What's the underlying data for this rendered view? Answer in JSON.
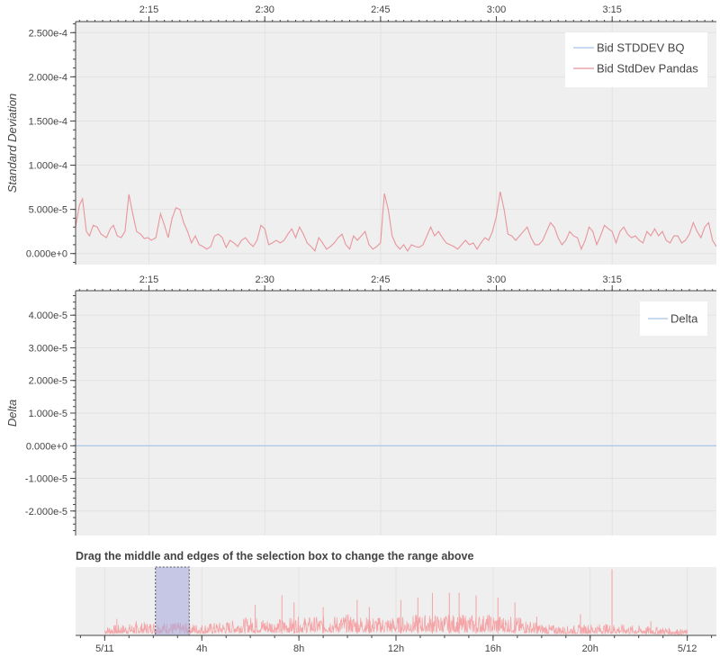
{
  "chart_data": [
    {
      "type": "line",
      "x_axis": {
        "position": "top",
        "ticks": [
          "2:15",
          "2:30",
          "2:45",
          "3:00",
          "3:15"
        ],
        "tick_minutes": [
          135,
          150,
          165,
          180,
          195
        ],
        "range_minutes": [
          125.5,
          208.5
        ]
      },
      "ylabel": "Standard Deviation",
      "yticks": [
        "0.000e+0",
        "5.000e-5",
        "1.000e-4",
        "1.500e-4",
        "2.000e-4",
        "2.500e-4"
      ],
      "ytick_values": [
        0,
        5e-05,
        0.0001,
        0.00015,
        0.0002,
        0.00025
      ],
      "ylim": [
        -1.25e-05,
        0.0002625
      ],
      "grid": true,
      "legend_position": "top-right",
      "series": [
        {
          "name": "Bid STDDEV BQ",
          "color": "#a6c4e6",
          "x": [],
          "y": []
        },
        {
          "name": "Bid StdDev Pandas",
          "color": "#e8959c",
          "x": [
            125.5,
            126.0,
            126.4,
            126.9,
            127.3,
            127.8,
            128.3,
            128.8,
            129.5,
            130.0,
            130.4,
            130.9,
            131.4,
            131.9,
            132.4,
            132.9,
            133.4,
            133.9,
            134.4,
            134.9,
            135.3,
            135.9,
            136.5,
            137.0,
            137.5,
            138.0,
            138.5,
            139.0,
            139.5,
            140.0,
            140.5,
            141.0,
            141.5,
            142.0,
            142.5,
            143.0,
            143.5,
            144.0,
            144.5,
            145.0,
            145.5,
            146.0,
            146.5,
            147.0,
            147.5,
            148.0,
            148.5,
            149.0,
            149.5,
            150.0,
            150.5,
            151.0,
            151.5,
            152.0,
            152.5,
            153.0,
            153.5,
            154.0,
            154.5,
            155.0,
            155.5,
            156.0,
            156.5,
            157.0,
            157.5,
            158.0,
            158.5,
            159.0,
            159.5,
            160.0,
            160.5,
            161.0,
            161.5,
            162.0,
            162.5,
            163.0,
            163.5,
            164.0,
            164.5,
            165.0,
            165.5,
            166.0,
            166.5,
            167.0,
            167.5,
            168.0,
            168.5,
            169.0,
            169.5,
            170.0,
            170.5,
            171.0,
            171.5,
            172.0,
            172.5,
            173.0,
            173.5,
            174.0,
            174.5,
            175.0,
            175.5,
            176.0,
            176.5,
            177.0,
            177.5,
            178.0,
            178.5,
            179.0,
            179.5,
            180.0,
            180.5,
            181.0,
            181.5,
            182.0,
            182.5,
            183.0,
            183.5,
            184.0,
            184.5,
            185.0,
            185.5,
            186.0,
            186.5,
            187.0,
            187.5,
            188.0,
            188.5,
            189.0,
            189.5,
            190.0,
            190.5,
            191.0,
            191.5,
            192.0,
            192.5,
            193.0,
            193.5,
            194.0,
            194.5,
            195.0,
            195.5,
            196.0,
            196.5,
            197.0,
            197.5,
            198.0,
            198.5,
            199.0,
            199.5,
            200.0,
            200.5,
            201.0,
            201.5,
            202.0,
            202.5,
            203.0,
            203.5,
            204.0,
            204.5,
            205.0,
            205.5,
            206.0,
            206.5,
            207.0,
            207.5,
            208.0,
            208.5
          ],
          "y": [
            3e-05,
            5.5e-05,
            6.2e-05,
            2.5e-05,
            2e-05,
            3.2e-05,
            3e-05,
            2.2e-05,
            1.8e-05,
            2.8e-05,
            3.2e-05,
            2e-05,
            1.8e-05,
            2.5e-05,
            6.7e-05,
            4.5e-05,
            2.5e-05,
            2.2e-05,
            1.7e-05,
            1.8e-05,
            1.5e-05,
            1.8e-05,
            4.5e-05,
            3.2e-05,
            1.8e-05,
            4e-05,
            5.2e-05,
            5e-05,
            3.5e-05,
            2.5e-05,
            1.2e-05,
            2e-05,
            1e-05,
            8e-06,
            5e-06,
            8e-06,
            2e-05,
            2.2e-05,
            1.8e-05,
            7e-06,
            1.5e-05,
            1.2e-05,
            8e-06,
            1.5e-05,
            1.8e-05,
            1.2e-05,
            8e-06,
            1.5e-05,
            3.2e-05,
            2.8e-05,
            1e-05,
            1.2e-05,
            1.5e-05,
            1.2e-05,
            1.5e-05,
            2.2e-05,
            2.8e-05,
            1.8e-05,
            3e-05,
            2.2e-05,
            1.2e-05,
            8e-06,
            3e-06,
            1.8e-05,
            1.2e-05,
            5e-06,
            8e-06,
            1.2e-05,
            1.8e-05,
            2.2e-05,
            1e-05,
            5e-06,
            2e-05,
            1.5e-05,
            2e-05,
            2.5e-05,
            1e-05,
            5e-06,
            8e-06,
            1.2e-05,
            6.8e-05,
            5e-05,
            2e-05,
            1e-05,
            5e-06,
            1e-05,
            3e-06,
            1e-05,
            8e-06,
            7e-06,
            1e-05,
            2e-05,
            3e-05,
            2e-05,
            2.5e-05,
            1.8e-05,
            1.2e-05,
            1e-05,
            8e-06,
            5e-06,
            1e-05,
            1.5e-05,
            1e-05,
            1.2e-05,
            5e-06,
            1.2e-05,
            1.8e-05,
            1.5e-05,
            2.5e-05,
            4.2e-05,
            7e-05,
            5e-05,
            2.2e-05,
            2e-05,
            1.5e-05,
            2e-05,
            2.5e-05,
            3e-05,
            1.8e-05,
            1e-05,
            1e-05,
            1.5e-05,
            2.5e-05,
            3.5e-05,
            3e-05,
            1.8e-05,
            1e-05,
            1.5e-05,
            2.5e-05,
            2e-05,
            1.8e-05,
            5e-06,
            1.5e-05,
            3e-05,
            2.5e-05,
            1e-05,
            2e-05,
            3.2e-05,
            2.8e-05,
            2.5e-05,
            1.2e-05,
            2.5e-05,
            3e-05,
            2.2e-05,
            1.8e-05,
            2e-05,
            1.5e-05,
            1.2e-05,
            2.5e-05,
            2e-05,
            2.8e-05,
            2e-05,
            2.5e-05,
            1.5e-05,
            1.2e-05,
            2e-05,
            2e-05,
            1.2e-05,
            1.5e-05,
            2.2e-05,
            3.5e-05,
            2.5e-05,
            1.8e-05,
            3e-05,
            3.5e-05,
            1.5e-05,
            8e-06
          ]
        }
      ]
    },
    {
      "type": "line",
      "x_axis": {
        "position": "top",
        "ticks": [
          "2:15",
          "2:30",
          "2:45",
          "3:00",
          "3:15"
        ],
        "tick_minutes": [
          135,
          150,
          165,
          180,
          195
        ],
        "range_minutes": [
          125.5,
          208.5
        ]
      },
      "ylabel": "Delta",
      "yticks": [
        "-2.000e-5",
        "-1.000e-5",
        "0.000e+0",
        "1.000e-5",
        "2.000e-5",
        "3.000e-5",
        "4.000e-5"
      ],
      "ytick_values": [
        -2e-05,
        -1e-05,
        0,
        1e-05,
        2e-05,
        3e-05,
        4e-05
      ],
      "ylim": [
        -2.75e-05,
        4.75e-05
      ],
      "grid": true,
      "legend_position": "top-right",
      "series": [
        {
          "name": "Delta",
          "color": "#a6c4e6",
          "x": [
            125.5,
            208.5
          ],
          "y": [
            0,
            0
          ]
        }
      ]
    },
    {
      "type": "line",
      "title": "Drag the middle and edges of the selection box to change the range above",
      "x_axis": {
        "position": "bottom",
        "ticks": [
          "5/11",
          "4h",
          "8h",
          "12h",
          "16h",
          "20h",
          "5/12"
        ],
        "tick_hours": [
          0,
          4,
          8,
          12,
          16,
          20,
          24
        ],
        "range_hours": [
          -1.2,
          25.2
        ]
      },
      "selection_hours": [
        2.09,
        3.48
      ],
      "color": "#f4a3a6",
      "selection_color": "#aaaadd",
      "ylim": [
        0,
        0.000145
      ],
      "data_start_hours": 0,
      "data_end_hours": 24,
      "envelope_hours": [
        0,
        1,
        2,
        3,
        4,
        5,
        6,
        7,
        8,
        9,
        10,
        11,
        12,
        13,
        14,
        15,
        16,
        17,
        18,
        19,
        20,
        21,
        22,
        23,
        24
      ],
      "envelope_upper": [
        2e-05,
        2.5e-05,
        3e-05,
        2.8e-05,
        2.5e-05,
        3e-05,
        4e-05,
        3.5e-05,
        4e-05,
        4e-05,
        4.5e-05,
        4e-05,
        4e-05,
        4.5e-05,
        4.5e-05,
        4.5e-05,
        4.5e-05,
        4e-05,
        2.5e-05,
        2e-05,
        2.5e-05,
        2.5e-05,
        2e-05,
        1.8e-05,
        1.2e-05
      ],
      "spikes": [
        {
          "hour": 0.5,
          "value": 3.5e-05
        },
        {
          "hour": 1.3,
          "value": 3e-05
        },
        {
          "hour": 2.8,
          "value": 2.5e-05
        },
        {
          "hour": 6.2,
          "value": 6.5e-05
        },
        {
          "hour": 7.3,
          "value": 8.5e-05
        },
        {
          "hour": 7.8,
          "value": 7e-05
        },
        {
          "hour": 9.0,
          "value": 6e-05
        },
        {
          "hour": 10.4,
          "value": 7.5e-05
        },
        {
          "hour": 10.9,
          "value": 6e-05
        },
        {
          "hour": 12.2,
          "value": 7.5e-05
        },
        {
          "hour": 12.9,
          "value": 8e-05
        },
        {
          "hour": 13.5,
          "value": 9e-05
        },
        {
          "hour": 14.2,
          "value": 9e-05
        },
        {
          "hour": 14.6,
          "value": 9e-05
        },
        {
          "hour": 15.3,
          "value": 8.5e-05
        },
        {
          "hour": 16.2,
          "value": 8e-05
        },
        {
          "hour": 16.9,
          "value": 7e-05
        },
        {
          "hour": 17.8,
          "value": 4e-05
        },
        {
          "hour": 19.6,
          "value": 4.5e-05
        },
        {
          "hour": 20.9,
          "value": 0.00014
        },
        {
          "hour": 22.5,
          "value": 3e-05
        }
      ]
    }
  ]
}
